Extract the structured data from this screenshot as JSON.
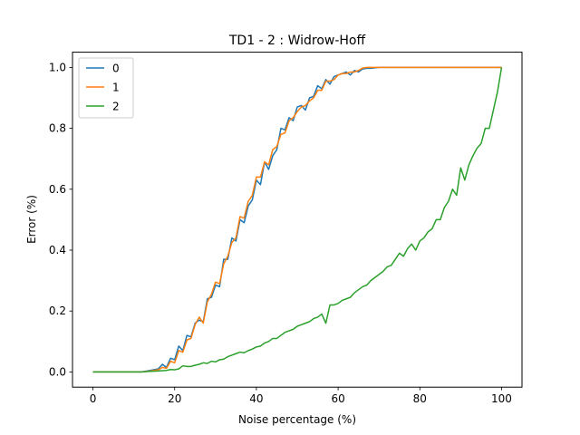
{
  "chart_data": {
    "type": "line",
    "title": "TD1 - 2 : Widrow-Hoff",
    "xlabel": "Noise percentage (%)",
    "ylabel": "Error (%)",
    "xlim": [
      -5,
      105
    ],
    "ylim": [
      -0.05,
      1.05
    ],
    "xticks": [
      0,
      20,
      40,
      60,
      80,
      100
    ],
    "yticks": [
      0.0,
      0.2,
      0.4,
      0.6,
      0.8,
      1.0
    ],
    "xtick_labels": [
      "0",
      "20",
      "40",
      "60",
      "80",
      "100"
    ],
    "ytick_labels": [
      "0.0",
      "0.2",
      "0.4",
      "0.6",
      "0.8",
      "1.0"
    ],
    "legend_position": "upper-left",
    "grid": false,
    "series": [
      {
        "name": "0",
        "color": "#1f77b4",
        "points": [
          [
            0,
            0
          ],
          [
            5,
            0
          ],
          [
            10,
            0
          ],
          [
            12,
            0
          ],
          [
            14,
            0.005
          ],
          [
            16,
            0.01
          ],
          [
            17,
            0.025
          ],
          [
            18,
            0.015
          ],
          [
            19,
            0.045
          ],
          [
            20,
            0.04
          ],
          [
            21,
            0.085
          ],
          [
            22,
            0.07
          ],
          [
            23,
            0.12
          ],
          [
            24,
            0.115
          ],
          [
            25,
            0.16
          ],
          [
            26,
            0.17
          ],
          [
            27,
            0.165
          ],
          [
            28,
            0.24
          ],
          [
            29,
            0.245
          ],
          [
            30,
            0.285
          ],
          [
            31,
            0.28
          ],
          [
            32,
            0.37
          ],
          [
            33,
            0.37
          ],
          [
            34,
            0.44
          ],
          [
            35,
            0.43
          ],
          [
            36,
            0.5
          ],
          [
            37,
            0.49
          ],
          [
            38,
            0.545
          ],
          [
            39,
            0.565
          ],
          [
            40,
            0.63
          ],
          [
            41,
            0.615
          ],
          [
            42,
            0.69
          ],
          [
            43,
            0.665
          ],
          [
            44,
            0.71
          ],
          [
            45,
            0.73
          ],
          [
            46,
            0.8
          ],
          [
            47,
            0.795
          ],
          [
            48,
            0.835
          ],
          [
            49,
            0.825
          ],
          [
            50,
            0.87
          ],
          [
            51,
            0.875
          ],
          [
            52,
            0.86
          ],
          [
            53,
            0.9
          ],
          [
            54,
            0.905
          ],
          [
            55,
            0.94
          ],
          [
            56,
            0.93
          ],
          [
            57,
            0.96
          ],
          [
            58,
            0.945
          ],
          [
            59,
            0.97
          ],
          [
            60,
            0.975
          ],
          [
            61,
            0.98
          ],
          [
            62,
            0.985
          ],
          [
            63,
            0.975
          ],
          [
            64,
            0.99
          ],
          [
            65,
            0.985
          ],
          [
            66,
            0.995
          ],
          [
            67,
            0.997
          ],
          [
            68,
            0.997
          ],
          [
            70,
            1.0
          ],
          [
            80,
            1.0
          ],
          [
            90,
            1.0
          ],
          [
            100,
            1.0
          ]
        ]
      },
      {
        "name": "1",
        "color": "#ff7f0e",
        "points": [
          [
            0,
            0
          ],
          [
            5,
            0
          ],
          [
            10,
            0
          ],
          [
            12,
            0
          ],
          [
            14,
            0.003
          ],
          [
            16,
            0.007
          ],
          [
            17,
            0.015
          ],
          [
            18,
            0.012
          ],
          [
            19,
            0.035
          ],
          [
            20,
            0.03
          ],
          [
            21,
            0.07
          ],
          [
            22,
            0.065
          ],
          [
            23,
            0.105
          ],
          [
            24,
            0.11
          ],
          [
            25,
            0.155
          ],
          [
            26,
            0.18
          ],
          [
            27,
            0.16
          ],
          [
            28,
            0.23
          ],
          [
            29,
            0.255
          ],
          [
            30,
            0.295
          ],
          [
            31,
            0.29
          ],
          [
            32,
            0.355
          ],
          [
            33,
            0.38
          ],
          [
            34,
            0.425
          ],
          [
            35,
            0.44
          ],
          [
            36,
            0.51
          ],
          [
            37,
            0.505
          ],
          [
            38,
            0.56
          ],
          [
            39,
            0.58
          ],
          [
            40,
            0.64
          ],
          [
            41,
            0.64
          ],
          [
            42,
            0.69
          ],
          [
            43,
            0.68
          ],
          [
            44,
            0.73
          ],
          [
            45,
            0.74
          ],
          [
            46,
            0.78
          ],
          [
            47,
            0.785
          ],
          [
            48,
            0.825
          ],
          [
            49,
            0.835
          ],
          [
            50,
            0.855
          ],
          [
            51,
            0.87
          ],
          [
            52,
            0.875
          ],
          [
            53,
            0.89
          ],
          [
            54,
            0.9
          ],
          [
            55,
            0.925
          ],
          [
            56,
            0.925
          ],
          [
            57,
            0.955
          ],
          [
            58,
            0.955
          ],
          [
            59,
            0.96
          ],
          [
            60,
            0.975
          ],
          [
            61,
            0.98
          ],
          [
            62,
            0.98
          ],
          [
            63,
            0.985
          ],
          [
            64,
            0.985
          ],
          [
            65,
            0.99
          ],
          [
            66,
            0.998
          ],
          [
            67,
            1.0
          ],
          [
            70,
            1.0
          ],
          [
            80,
            1.0
          ],
          [
            90,
            1.0
          ],
          [
            100,
            1.0
          ]
        ]
      },
      {
        "name": "2",
        "color": "#2ca02c",
        "points": [
          [
            0,
            0
          ],
          [
            5,
            0
          ],
          [
            10,
            0
          ],
          [
            12,
            0
          ],
          [
            14,
            0.002
          ],
          [
            16,
            0.003
          ],
          [
            18,
            0.005
          ],
          [
            19,
            0.008
          ],
          [
            20,
            0.007
          ],
          [
            21,
            0.01
          ],
          [
            22,
            0.02
          ],
          [
            23,
            0.018
          ],
          [
            24,
            0.018
          ],
          [
            25,
            0.022
          ],
          [
            26,
            0.025
          ],
          [
            27,
            0.03
          ],
          [
            28,
            0.028
          ],
          [
            29,
            0.035
          ],
          [
            30,
            0.033
          ],
          [
            31,
            0.04
          ],
          [
            32,
            0.042
          ],
          [
            33,
            0.05
          ],
          [
            34,
            0.055
          ],
          [
            35,
            0.06
          ],
          [
            36,
            0.065
          ],
          [
            37,
            0.063
          ],
          [
            38,
            0.07
          ],
          [
            39,
            0.075
          ],
          [
            40,
            0.082
          ],
          [
            41,
            0.085
          ],
          [
            42,
            0.095
          ],
          [
            43,
            0.1
          ],
          [
            44,
            0.11
          ],
          [
            45,
            0.11
          ],
          [
            46,
            0.12
          ],
          [
            47,
            0.13
          ],
          [
            48,
            0.135
          ],
          [
            49,
            0.14
          ],
          [
            50,
            0.15
          ],
          [
            51,
            0.155
          ],
          [
            52,
            0.16
          ],
          [
            53,
            0.165
          ],
          [
            54,
            0.175
          ],
          [
            55,
            0.18
          ],
          [
            56,
            0.19
          ],
          [
            57,
            0.16
          ],
          [
            58,
            0.22
          ],
          [
            59,
            0.22
          ],
          [
            60,
            0.225
          ],
          [
            61,
            0.235
          ],
          [
            62,
            0.24
          ],
          [
            63,
            0.245
          ],
          [
            64,
            0.26
          ],
          [
            65,
            0.27
          ],
          [
            66,
            0.28
          ],
          [
            67,
            0.285
          ],
          [
            68,
            0.3
          ],
          [
            69,
            0.31
          ],
          [
            70,
            0.32
          ],
          [
            71,
            0.33
          ],
          [
            72,
            0.345
          ],
          [
            73,
            0.35
          ],
          [
            74,
            0.37
          ],
          [
            75,
            0.39
          ],
          [
            76,
            0.38
          ],
          [
            77,
            0.405
          ],
          [
            78,
            0.42
          ],
          [
            79,
            0.4
          ],
          [
            80,
            0.43
          ],
          [
            81,
            0.44
          ],
          [
            82,
            0.46
          ],
          [
            83,
            0.47
          ],
          [
            84,
            0.5
          ],
          [
            85,
            0.5
          ],
          [
            86,
            0.54
          ],
          [
            87,
            0.56
          ],
          [
            88,
            0.6
          ],
          [
            89,
            0.58
          ],
          [
            90,
            0.67
          ],
          [
            91,
            0.63
          ],
          [
            92,
            0.68
          ],
          [
            93,
            0.71
          ],
          [
            94,
            0.735
          ],
          [
            95,
            0.75
          ],
          [
            96,
            0.8
          ],
          [
            97,
            0.8
          ],
          [
            98,
            0.86
          ],
          [
            99,
            0.92
          ],
          [
            100,
            1.0
          ]
        ]
      }
    ]
  }
}
